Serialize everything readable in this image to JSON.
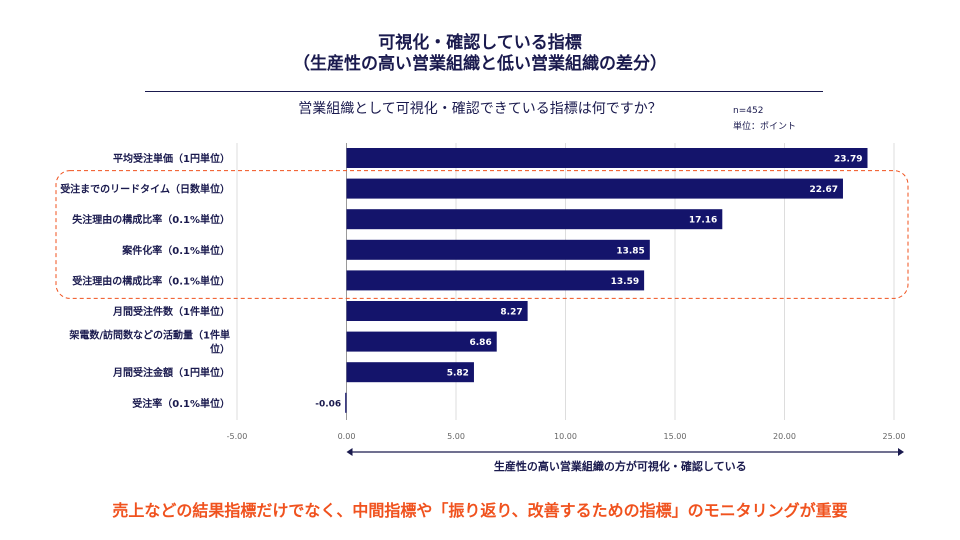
{
  "header": {
    "title_line1": "可視化・確認している指標",
    "title_line2": "（生産性の高い営業組織と低い営業組織の差分）",
    "question": "営業組織として可視化・確認できている指標は何ですか？",
    "sample": "n=452",
    "unit": "単位：ポイント"
  },
  "chart_data": {
    "type": "bar",
    "orientation": "horizontal",
    "categories": [
      "平均受注単価（1円単位）",
      "受注までのリードタイム（日数単位）",
      "失注理由の構成比率（0.1%単位）",
      "案件化率（0.1%単位）",
      "受注理由の構成比率（0.1%単位）",
      "月間受注件数（1件単位）",
      "架電数/訪問数などの活動量（1件単位）",
      "月間受注金額（1円単位）",
      "受注率（0.1%単位）"
    ],
    "values": [
      23.79,
      22.67,
      17.16,
      13.85,
      13.59,
      8.27,
      6.86,
      5.82,
      -0.06
    ],
    "value_labels": [
      "23.79",
      "22.67",
      "17.16",
      "13.85",
      "13.59",
      "8.27",
      "6.86",
      "5.82",
      "-0.06"
    ],
    "xlim": [
      -5,
      25
    ],
    "xticks": [
      "-5.00",
      "0.00",
      "5.00",
      "10.00",
      "15.00",
      "20.00",
      "25.00"
    ],
    "xtick_values": [
      -5,
      0,
      5,
      10,
      15,
      20,
      25
    ],
    "arrow_label": "生産性の高い営業組織の方が可視化・確認している",
    "highlight_indices": [
      1,
      2,
      3,
      4
    ],
    "grid": true,
    "legend": "none",
    "colors": {
      "bar": "#14146b",
      "grid": "#dddddd",
      "highlight": "#f0521e",
      "label_inside": "#ffffff"
    }
  },
  "footer": {
    "message": "売上などの結果指標だけでなく、中間指標や「振り返り、改善するための指標」のモニタリングが重要"
  }
}
